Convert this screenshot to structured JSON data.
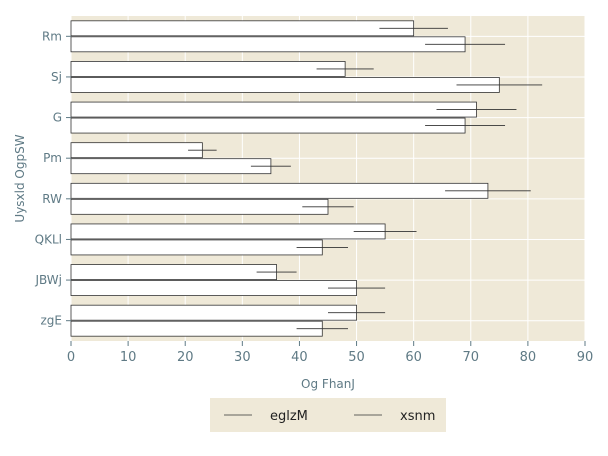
{
  "chart_data": {
    "type": "bar",
    "orientation": "horizontal",
    "title": "",
    "xlabel": "Og FhanJ",
    "ylabel": "Uysxld OgpSW",
    "xlim": [
      0,
      90
    ],
    "xticks": [
      "0",
      "10",
      "20",
      "30",
      "40",
      "50",
      "60",
      "70",
      "80",
      "90"
    ],
    "categories": [
      "Rm",
      "Sj",
      "G",
      "Pm",
      "RW",
      "QKLl",
      "JBWj",
      "zgE"
    ],
    "series": [
      {
        "name": "eglzM",
        "values": [
          60,
          48,
          71,
          23,
          73,
          55,
          36,
          50
        ],
        "errors": [
          6,
          5,
          7,
          2.5,
          7.5,
          5.5,
          3.5,
          5
        ]
      },
      {
        "name": "xsnm",
        "values": [
          69,
          75,
          69,
          35,
          45,
          44,
          50,
          44
        ],
        "errors": [
          7,
          7.5,
          7,
          3.5,
          4.5,
          4.5,
          5,
          4.5
        ]
      }
    ],
    "grid": true,
    "legend": "bottom-center",
    "colors": {
      "background": "#efe9d8",
      "bar_fill": "#ffffff",
      "bar_edge": "#333333",
      "error_bar": "#333333",
      "grid": "#ffffff",
      "tick_text": "#5f7a85",
      "legend_background": "#efe9d8"
    }
  }
}
